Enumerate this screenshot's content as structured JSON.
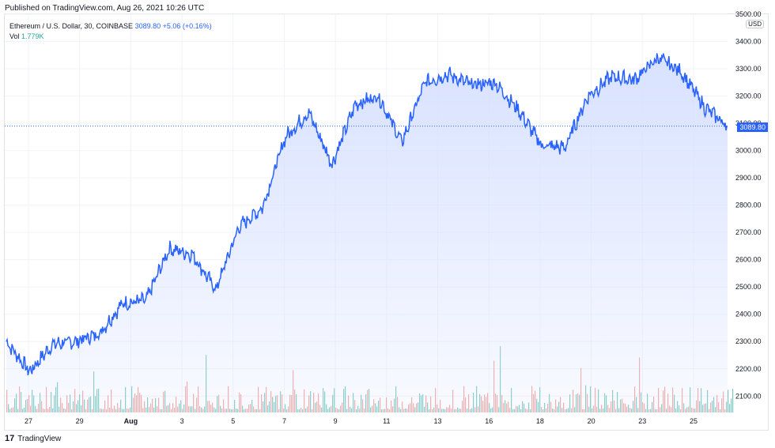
{
  "header": {
    "published": "Published on TradingView.com, Aug 26, 2021 10:26 UTC"
  },
  "legend": {
    "symbol": "Ethereum / U.S. Dollar, 30, COINBASE",
    "last": "3089.80",
    "change": "+5.06 (+0.16%)",
    "vol_label": "Vol",
    "vol_value": "1.779K"
  },
  "price_axis": {
    "currency": "USD",
    "current_tag": "3089.80"
  },
  "footer": {
    "brand": "TradingView",
    "logo_mark": "17"
  },
  "colors": {
    "line": "#2962ff",
    "fill": "#d6e0ff",
    "vol_up": "#7dc9bf",
    "vol_down": "#f2a5a1"
  },
  "chart_data": {
    "type": "area",
    "series": [
      {
        "name": "Ethereum / U.S. Dollar",
        "x": [
          "Jul 26",
          "Jul 27",
          "Jul 28",
          "Jul 29",
          "Jul 30",
          "Jul 31",
          "Aug 1",
          "Aug 2",
          "Aug 3",
          "Aug 4",
          "Aug 5",
          "Aug 6",
          "Aug 7",
          "Aug 8",
          "Aug 9",
          "Aug 10",
          "Aug 11",
          "Aug 12",
          "Aug 13",
          "Aug 14",
          "Aug 15",
          "Aug 16",
          "Aug 17",
          "Aug 18",
          "Aug 19",
          "Aug 20",
          "Aug 21",
          "Aug 22",
          "Aug 23",
          "Aug 24",
          "Aug 25",
          "Aug 26"
        ],
        "values": [
          2300,
          2190,
          2290,
          2300,
          2330,
          2440,
          2450,
          2640,
          2620,
          2490,
          2720,
          2790,
          3050,
          3140,
          2950,
          3170,
          3200,
          3030,
          3250,
          3280,
          3240,
          3250,
          3150,
          3020,
          3010,
          3200,
          3270,
          3260,
          3340,
          3290,
          3160,
          3090
        ]
      }
    ],
    "ylim": [
      2040,
      3500
    ],
    "y_ticks": [
      "2100.00",
      "2200.00",
      "2300.00",
      "2400.00",
      "2500.00",
      "2600.00",
      "2700.00",
      "2800.00",
      "2900.00",
      "3000.00",
      "3100.00",
      "3200.00",
      "3300.00",
      "3400.00",
      "3500.00"
    ],
    "x_ticks": [
      "27",
      "29",
      "Aug",
      "3",
      "5",
      "7",
      "9",
      "11",
      "13",
      "16",
      "18",
      "20",
      "23",
      "25"
    ],
    "current_price": 3089.8,
    "grid": true
  }
}
